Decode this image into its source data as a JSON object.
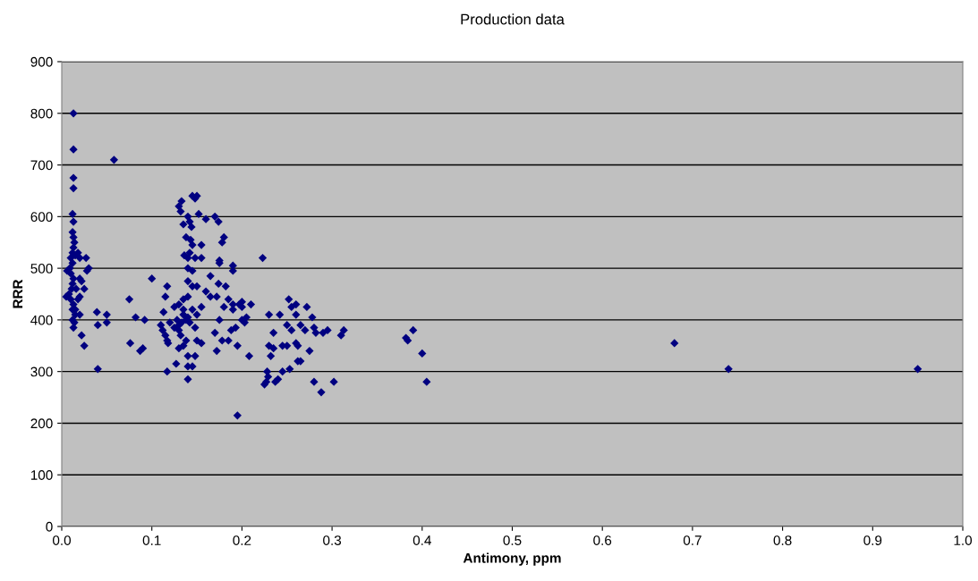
{
  "chart_data": {
    "type": "scatter",
    "title": "Production data",
    "xlabel": "Antimony, ppm",
    "ylabel": "RRR",
    "xlim": [
      0,
      1
    ],
    "xticks": [
      {
        "value": 0,
        "label": "0.0"
      },
      {
        "value": 0.1,
        "label": "0.1"
      },
      {
        "value": 0.2,
        "label": "0.2"
      },
      {
        "value": 0.3,
        "label": "0.3"
      },
      {
        "value": 0.4,
        "label": "0.4"
      },
      {
        "value": 0.5,
        "label": "0.5"
      },
      {
        "value": 0.6,
        "label": "0.6"
      },
      {
        "value": 0.7,
        "label": "0.7"
      },
      {
        "value": 0.8,
        "label": "0.8"
      },
      {
        "value": 0.9,
        "label": "0.9"
      },
      {
        "value": 1,
        "label": "1.0"
      }
    ],
    "ylim": [
      0,
      900
    ],
    "yticks": [
      0,
      100,
      200,
      300,
      400,
      500,
      600,
      700,
      800,
      900
    ],
    "grid": "y",
    "marker": "diamond",
    "series": [
      {
        "color": "#000080",
        "x": [
          0.013,
          0.013,
          0.013,
          0.013,
          0.012,
          0.013,
          0.012,
          0.013,
          0.014,
          0.013,
          0.012,
          0.015,
          0.01,
          0.012,
          0.009,
          0.006,
          0.01,
          0.013,
          0.012,
          0.011,
          0.008,
          0.005,
          0.01,
          0.013,
          0.012,
          0.015,
          0.012,
          0.014,
          0.013,
          0.018,
          0.02,
          0.02,
          0.022,
          0.025,
          0.027,
          0.03,
          0.028,
          0.018,
          0.02,
          0.022,
          0.025,
          0.016,
          0.02,
          0.015,
          0.04,
          0.04,
          0.039,
          0.05,
          0.05,
          0.058,
          0.075,
          0.076,
          0.082,
          0.087,
          0.09,
          0.092,
          0.1,
          0.117,
          0.115,
          0.113,
          0.11,
          0.112,
          0.115,
          0.117,
          0.118,
          0.12,
          0.117,
          0.125,
          0.127,
          0.13,
          0.132,
          0.133,
          0.135,
          0.138,
          0.14,
          0.142,
          0.144,
          0.145,
          0.148,
          0.15,
          0.136,
          0.14,
          0.14,
          0.145,
          0.14,
          0.14,
          0.145,
          0.135,
          0.13,
          0.128,
          0.13,
          0.132,
          0.13,
          0.135,
          0.138,
          0.14,
          0.14,
          0.145,
          0.14,
          0.143,
          0.145,
          0.142,
          0.148,
          0.15,
          0.15,
          0.148,
          0.15,
          0.148,
          0.135,
          0.138,
          0.142,
          0.145,
          0.13,
          0.125,
          0.135,
          0.14,
          0.133,
          0.152,
          0.155,
          0.155,
          0.155,
          0.155,
          0.16,
          0.16,
          0.165,
          0.165,
          0.17,
          0.17,
          0.172,
          0.174,
          0.175,
          0.175,
          0.174,
          0.178,
          0.18,
          0.175,
          0.172,
          0.178,
          0.18,
          0.182,
          0.185,
          0.185,
          0.188,
          0.19,
          0.19,
          0.19,
          0.19,
          0.193,
          0.195,
          0.195,
          0.197,
          0.2,
          0.2,
          0.2,
          0.203,
          0.205,
          0.208,
          0.21,
          0.223,
          0.225,
          0.227,
          0.228,
          0.229,
          0.23,
          0.23,
          0.232,
          0.235,
          0.235,
          0.237,
          0.24,
          0.242,
          0.245,
          0.245,
          0.25,
          0.25,
          0.252,
          0.253,
          0.255,
          0.255,
          0.26,
          0.26,
          0.26,
          0.262,
          0.262,
          0.265,
          0.265,
          0.27,
          0.272,
          0.275,
          0.278,
          0.28,
          0.28,
          0.282,
          0.288,
          0.29,
          0.295,
          0.302,
          0.31,
          0.313,
          0.382,
          0.384,
          0.39,
          0.4,
          0.405,
          0.68,
          0.74,
          0.95
        ],
        "values": [
          800,
          730,
          675,
          655,
          605,
          590,
          570,
          560,
          550,
          540,
          530,
          525,
          520,
          510,
          500,
          495,
          490,
          480,
          470,
          460,
          450,
          445,
          440,
          430,
          420,
          410,
          400,
          395,
          385,
          530,
          520,
          480,
          475,
          460,
          520,
          500,
          495,
          440,
          410,
          370,
          350,
          460,
          445,
          420,
          305,
          390,
          415,
          410,
          395,
          710,
          440,
          355,
          405,
          340,
          345,
          400,
          480,
          465,
          445,
          415,
          390,
          380,
          370,
          360,
          355,
          395,
          300,
          425,
          315,
          620,
          610,
          630,
          585,
          560,
          600,
          590,
          580,
          640,
          635,
          640,
          525,
          520,
          500,
          495,
          475,
          445,
          465,
          440,
          430,
          400,
          380,
          370,
          345,
          350,
          360,
          330,
          310,
          310,
          285,
          555,
          545,
          530,
          520,
          465,
          410,
          385,
          360,
          330,
          410,
          400,
          395,
          420,
          390,
          385,
          420,
          405,
          395,
          605,
          545,
          520,
          425,
          355,
          595,
          455,
          445,
          485,
          600,
          375,
          445,
          590,
          515,
          510,
          470,
          550,
          560,
          400,
          340,
          360,
          425,
          465,
          440,
          360,
          380,
          495,
          505,
          430,
          420,
          385,
          350,
          215,
          430,
          425,
          400,
          435,
          395,
          405,
          330,
          430,
          520,
          275,
          280,
          300,
          290,
          350,
          410,
          330,
          345,
          375,
          280,
          285,
          410,
          300,
          350,
          390,
          350,
          440,
          305,
          425,
          380,
          430,
          410,
          355,
          350,
          320,
          320,
          390,
          380,
          425,
          340,
          405,
          385,
          280,
          375,
          260,
          375,
          380,
          280,
          370,
          380,
          365,
          360,
          380,
          335,
          280,
          355,
          305,
          305
        ]
      }
    ]
  }
}
